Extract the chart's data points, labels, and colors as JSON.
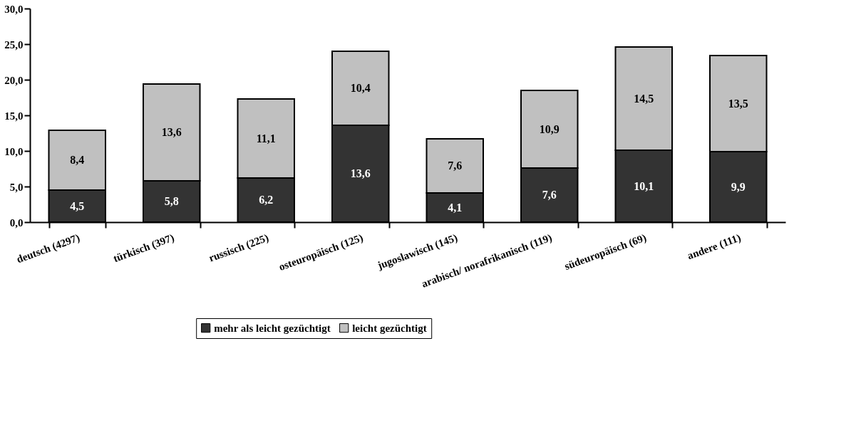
{
  "chart_data": {
    "type": "bar",
    "stacked": true,
    "grid": false,
    "legend": "bottom",
    "categories": [
      "deutsch (4297)",
      "türkisch (397)",
      "russisch (225)",
      "osteuropäisch (125)",
      "jugoslawisch (145)",
      "arabisch/ norafrikanisch (119)",
      "südeuropäisch (69)",
      "andere (111)"
    ],
    "series": [
      {
        "name": "mehr als leicht gezüchtigt",
        "color": "#333333",
        "values": [
          4.5,
          5.8,
          6.2,
          13.6,
          4.1,
          7.6,
          10.1,
          9.9
        ],
        "value_labels": [
          "4,5",
          "5,8",
          "6,2",
          "13,6",
          "4,1",
          "7,6",
          "10,1",
          "9,9"
        ]
      },
      {
        "name": "leicht gezüchtigt",
        "color": "#c0c0c0",
        "values": [
          8.4,
          13.6,
          11.1,
          10.4,
          7.6,
          10.9,
          14.5,
          13.5
        ],
        "value_labels": [
          "8,4",
          "13,6",
          "11,1",
          "10,4",
          "7,6",
          "10,9",
          "14,5",
          "13,5"
        ]
      }
    ],
    "ylim": [
      0,
      30
    ],
    "yticks": [
      {
        "value": 0,
        "label": "0,0"
      },
      {
        "value": 5,
        "label": "5,0"
      },
      {
        "value": 10,
        "label": "10,0"
      },
      {
        "value": 15,
        "label": "15,0"
      },
      {
        "value": 20,
        "label": "20,0"
      },
      {
        "value": 25,
        "label": "25,0"
      },
      {
        "value": 30,
        "label": "30,0"
      }
    ]
  }
}
